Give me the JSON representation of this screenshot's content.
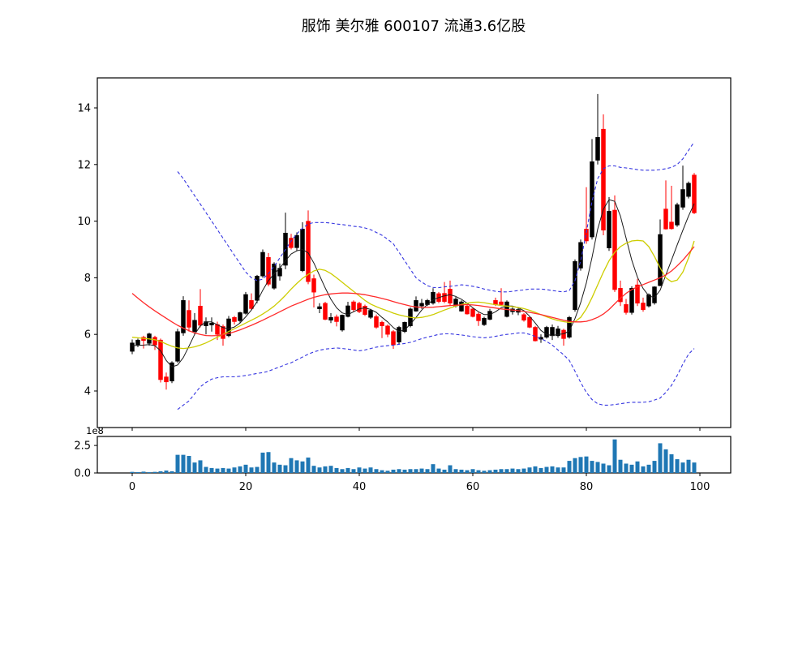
{
  "title": "服饰 美尔雅 600107 流通3.6亿股",
  "chart_data": {
    "type": "candlestick",
    "title": "服饰 美尔雅 600107 流通3.6亿股",
    "stock": {
      "sector": "服饰",
      "name": "美尔雅",
      "code": "600107",
      "float_shares_label": "流通3.6亿股"
    },
    "x_axis": {
      "tick_values": [
        0,
        20,
        40,
        60,
        80,
        100
      ],
      "tick_labels": [
        "0",
        "20",
        "40",
        "60",
        "80",
        "100"
      ],
      "xlim": [
        -6,
        106
      ]
    },
    "price_axis": {
      "tick_values": [
        4,
        6,
        8,
        10,
        12,
        14
      ],
      "tick_labels": [
        "4",
        "6",
        "8",
        "10",
        "12",
        "14"
      ],
      "ylim": [
        2.71,
        15.06
      ]
    },
    "volume_axis": {
      "tick_values": [
        0.0,
        2.5
      ],
      "tick_labels": [
        "0.0",
        "2.5"
      ],
      "offset_label": "1e8",
      "ylim": [
        0,
        3.32
      ]
    },
    "colors": {
      "up_candle": "#000000",
      "down_candle": "#ff0000",
      "ma_fast": "#1a1a1a",
      "ma_mid": "#cdcd00",
      "ma_slow": "#ff2a2a",
      "band": "#3535e0",
      "volume_bar": "#1f77b4",
      "spine": "#000000",
      "background": "#ffffff"
    },
    "candles_ohlc": [
      [
        5.4,
        5.82,
        5.3,
        5.7
      ],
      [
        5.63,
        5.85,
        5.55,
        5.8
      ],
      [
        5.9,
        5.95,
        5.5,
        5.78
      ],
      [
        5.68,
        6.06,
        5.6,
        6.02
      ],
      [
        5.9,
        5.95,
        5.45,
        5.62
      ],
      [
        5.8,
        5.85,
        4.3,
        4.4
      ],
      [
        4.5,
        4.65,
        4.05,
        4.32
      ],
      [
        4.35,
        5.05,
        4.28,
        5.0
      ],
      [
        5.05,
        6.2,
        5.0,
        6.1
      ],
      [
        6.05,
        7.35,
        5.95,
        7.2
      ],
      [
        6.85,
        7.2,
        6.1,
        6.25
      ],
      [
        6.1,
        6.75,
        6.0,
        6.5
      ],
      [
        7.0,
        7.6,
        6.25,
        6.32
      ],
      [
        6.3,
        6.6,
        6.0,
        6.45
      ],
      [
        6.33,
        6.6,
        6.1,
        6.4
      ],
      [
        6.35,
        6.45,
        5.8,
        6.0
      ],
      [
        6.28,
        6.35,
        5.6,
        5.85
      ],
      [
        5.95,
        6.65,
        5.9,
        6.55
      ],
      [
        6.6,
        6.65,
        6.35,
        6.45
      ],
      [
        6.48,
        6.8,
        6.4,
        6.77
      ],
      [
        6.74,
        7.5,
        6.7,
        7.41
      ],
      [
        7.2,
        7.45,
        6.85,
        6.91
      ],
      [
        7.2,
        8.1,
        7.1,
        8.06
      ],
      [
        8.06,
        9.0,
        8.0,
        8.9
      ],
      [
        8.72,
        8.87,
        7.7,
        7.77
      ],
      [
        7.63,
        8.55,
        7.58,
        8.49
      ],
      [
        8.06,
        8.5,
        7.9,
        8.34
      ],
      [
        8.44,
        10.3,
        8.3,
        9.58
      ],
      [
        9.4,
        9.55,
        9.0,
        9.06
      ],
      [
        9.06,
        9.6,
        8.95,
        9.5
      ],
      [
        8.25,
        9.96,
        8.2,
        9.72
      ],
      [
        10.0,
        10.38,
        7.77,
        7.86
      ],
      [
        7.97,
        8.11,
        6.95,
        7.49
      ],
      [
        6.9,
        7.1,
        6.75,
        6.98
      ],
      [
        7.1,
        7.15,
        6.5,
        6.53
      ],
      [
        6.5,
        6.75,
        6.4,
        6.6
      ],
      [
        6.62,
        6.7,
        6.28,
        6.45
      ],
      [
        6.15,
        6.7,
        6.1,
        6.68
      ],
      [
        6.63,
        7.15,
        6.6,
        7.01
      ],
      [
        7.15,
        7.2,
        6.8,
        6.87
      ],
      [
        7.1,
        7.15,
        6.75,
        6.8
      ],
      [
        7.0,
        7.05,
        6.65,
        6.7
      ],
      [
        6.6,
        6.9,
        6.55,
        6.85
      ],
      [
        6.63,
        6.7,
        6.2,
        6.25
      ],
      [
        6.43,
        6.48,
        5.87,
        6.3
      ],
      [
        6.3,
        6.35,
        5.9,
        6.0
      ],
      [
        6.1,
        6.15,
        5.49,
        5.63
      ],
      [
        5.73,
        6.3,
        5.65,
        6.25
      ],
      [
        6.1,
        6.45,
        6.05,
        6.43
      ],
      [
        6.3,
        6.95,
        6.25,
        6.9
      ],
      [
        6.82,
        7.34,
        6.8,
        7.2
      ],
      [
        7.0,
        7.25,
        6.9,
        7.1
      ],
      [
        7.05,
        7.25,
        7.0,
        7.2
      ],
      [
        7.1,
        7.63,
        7.05,
        7.49
      ],
      [
        7.44,
        7.5,
        7.1,
        7.16
      ],
      [
        7.45,
        7.85,
        7.1,
        7.16
      ],
      [
        7.6,
        7.9,
        7.0,
        7.1
      ],
      [
        7.0,
        7.32,
        6.95,
        7.25
      ],
      [
        6.82,
        7.2,
        6.8,
        7.15
      ],
      [
        7.0,
        7.05,
        6.7,
        6.72
      ],
      [
        6.9,
        6.95,
        6.6,
        6.63
      ],
      [
        6.72,
        6.78,
        6.3,
        6.48
      ],
      [
        6.34,
        6.62,
        6.3,
        6.57
      ],
      [
        6.53,
        6.9,
        6.5,
        6.82
      ],
      [
        7.2,
        7.3,
        7.0,
        7.05
      ],
      [
        7.15,
        7.63,
        7.0,
        7.05
      ],
      [
        6.63,
        7.2,
        6.6,
        7.15
      ],
      [
        6.8,
        6.95,
        6.7,
        6.9
      ],
      [
        6.78,
        6.95,
        6.68,
        6.88
      ],
      [
        6.7,
        6.75,
        6.45,
        6.5
      ],
      [
        6.6,
        6.65,
        6.22,
        6.25
      ],
      [
        6.25,
        6.3,
        5.75,
        5.77
      ],
      [
        5.83,
        6.0,
        5.7,
        5.9
      ],
      [
        5.9,
        6.3,
        5.85,
        6.25
      ],
      [
        5.95,
        6.35,
        5.8,
        6.25
      ],
      [
        5.95,
        6.3,
        5.88,
        6.2
      ],
      [
        6.15,
        6.2,
        5.6,
        5.85
      ],
      [
        5.9,
        6.65,
        5.85,
        6.6
      ],
      [
        6.87,
        8.65,
        6.8,
        8.58
      ],
      [
        8.34,
        9.35,
        8.25,
        9.25
      ],
      [
        9.72,
        11.2,
        9.2,
        9.3
      ],
      [
        9.44,
        12.9,
        9.35,
        12.1
      ],
      [
        12.15,
        14.49,
        12.0,
        12.96
      ],
      [
        13.25,
        13.77,
        9.5,
        9.68
      ],
      [
        9.05,
        10.85,
        8.95,
        10.35
      ],
      [
        10.39,
        10.91,
        7.5,
        7.58
      ],
      [
        7.63,
        7.9,
        7.0,
        7.15
      ],
      [
        7.06,
        7.25,
        6.7,
        6.77
      ],
      [
        6.77,
        7.7,
        6.7,
        7.63
      ],
      [
        7.75,
        7.96,
        7.0,
        7.1
      ],
      [
        7.11,
        7.3,
        6.8,
        6.87
      ],
      [
        7.0,
        7.45,
        6.95,
        7.4
      ],
      [
        7.11,
        7.7,
        7.05,
        7.68
      ],
      [
        7.72,
        10.06,
        7.7,
        9.53
      ],
      [
        10.43,
        11.44,
        9.7,
        9.72
      ],
      [
        9.97,
        11.25,
        9.7,
        9.73
      ],
      [
        9.86,
        10.65,
        9.8,
        10.58
      ],
      [
        10.49,
        11.96,
        10.4,
        11.12
      ],
      [
        10.87,
        11.4,
        10.8,
        11.34
      ],
      [
        11.63,
        11.7,
        10.25,
        10.29
      ]
    ],
    "volume_1e8": [
      0.1,
      0.08,
      0.12,
      0.07,
      0.1,
      0.15,
      0.22,
      0.15,
      1.65,
      1.65,
      1.55,
      0.95,
      1.15,
      0.55,
      0.45,
      0.4,
      0.45,
      0.4,
      0.5,
      0.6,
      0.75,
      0.5,
      0.55,
      1.85,
      1.9,
      0.95,
      0.75,
      0.7,
      1.35,
      1.15,
      1.05,
      1.4,
      0.65,
      0.5,
      0.6,
      0.65,
      0.45,
      0.35,
      0.45,
      0.35,
      0.5,
      0.4,
      0.5,
      0.35,
      0.25,
      0.2,
      0.3,
      0.35,
      0.3,
      0.35,
      0.35,
      0.4,
      0.35,
      0.8,
      0.4,
      0.3,
      0.7,
      0.35,
      0.3,
      0.25,
      0.35,
      0.25,
      0.2,
      0.25,
      0.3,
      0.35,
      0.35,
      0.4,
      0.35,
      0.4,
      0.5,
      0.6,
      0.45,
      0.55,
      0.6,
      0.5,
      0.5,
      1.1,
      1.35,
      1.45,
      1.5,
      1.1,
      1.0,
      0.85,
      0.7,
      3.05,
      1.2,
      0.85,
      0.75,
      1.05,
      0.6,
      0.75,
      1.1,
      2.7,
      2.15,
      1.7,
      1.25,
      0.95,
      1.2,
      0.95
    ],
    "lines": {
      "ma_fast": {
        "name": "short-ma-black",
        "values": [
          5.6,
          5.61,
          5.62,
          5.64,
          5.6,
          5.42,
          5.08,
          4.85,
          4.92,
          5.18,
          5.58,
          6.0,
          6.3,
          6.44,
          6.44,
          6.34,
          6.24,
          6.2,
          6.26,
          6.4,
          6.62,
          6.86,
          7.16,
          7.56,
          7.9,
          8.14,
          8.34,
          8.6,
          8.84,
          8.95,
          9.0,
          8.88,
          8.52,
          8.08,
          7.64,
          7.24,
          6.94,
          6.76,
          6.7,
          6.8,
          6.9,
          6.94,
          6.88,
          6.78,
          6.6,
          6.44,
          6.24,
          6.1,
          6.16,
          6.36,
          6.6,
          6.86,
          7.06,
          7.22,
          7.3,
          7.36,
          7.4,
          7.34,
          7.24,
          7.1,
          6.94,
          6.8,
          6.7,
          6.7,
          6.8,
          6.94,
          7.0,
          7.0,
          6.94,
          6.84,
          6.64,
          6.4,
          6.14,
          6.0,
          5.96,
          6.0,
          6.02,
          6.12,
          6.56,
          7.12,
          7.82,
          8.72,
          9.72,
          10.42,
          10.76,
          10.7,
          10.18,
          9.4,
          8.62,
          8.02,
          7.62,
          7.36,
          7.3,
          7.56,
          8.1,
          8.62,
          9.16,
          9.68,
          10.18,
          10.62
        ]
      },
      "ma_mid": {
        "name": "mid-ma-yellow",
        "values": [
          5.9,
          5.88,
          5.86,
          5.84,
          5.81,
          5.75,
          5.66,
          5.58,
          5.52,
          5.5,
          5.52,
          5.56,
          5.62,
          5.7,
          5.8,
          5.9,
          6.0,
          6.1,
          6.2,
          6.3,
          6.4,
          6.5,
          6.6,
          6.72,
          6.85,
          7.0,
          7.18,
          7.38,
          7.6,
          7.8,
          7.98,
          8.12,
          8.24,
          8.3,
          8.26,
          8.15,
          8.0,
          7.84,
          7.68,
          7.52,
          7.36,
          7.2,
          7.07,
          6.98,
          6.9,
          6.83,
          6.75,
          6.69,
          6.64,
          6.6,
          6.58,
          6.6,
          6.64,
          6.7,
          6.78,
          6.86,
          6.93,
          7.0,
          7.06,
          7.1,
          7.13,
          7.14,
          7.12,
          7.08,
          7.05,
          7.02,
          7.0,
          6.98,
          6.95,
          6.91,
          6.85,
          6.78,
          6.7,
          6.62,
          6.55,
          6.49,
          6.45,
          6.42,
          6.45,
          6.6,
          6.9,
          7.3,
          7.75,
          8.2,
          8.6,
          8.9,
          9.1,
          9.22,
          9.3,
          9.32,
          9.3,
          9.1,
          8.75,
          8.35,
          8.0,
          7.86,
          7.92,
          8.2,
          8.7,
          9.3
        ]
      },
      "ma_slow": {
        "name": "long-ma-red",
        "values": [
          7.45,
          7.28,
          7.12,
          6.97,
          6.83,
          6.7,
          6.57,
          6.44,
          6.32,
          6.22,
          6.13,
          6.05,
          6.0,
          5.96,
          5.95,
          5.96,
          5.99,
          6.03,
          6.09,
          6.16,
          6.24,
          6.32,
          6.41,
          6.5,
          6.6,
          6.7,
          6.8,
          6.9,
          7.0,
          7.08,
          7.16,
          7.24,
          7.31,
          7.36,
          7.4,
          7.43,
          7.45,
          7.46,
          7.46,
          7.45,
          7.43,
          7.4,
          7.36,
          7.32,
          7.27,
          7.22,
          7.16,
          7.1,
          7.05,
          7.0,
          6.97,
          6.95,
          6.95,
          6.96,
          6.98,
          7.0,
          7.02,
          7.03,
          7.04,
          7.05,
          7.04,
          7.02,
          6.99,
          6.96,
          6.93,
          6.9,
          6.88,
          6.86,
          6.84,
          6.81,
          6.78,
          6.74,
          6.7,
          6.65,
          6.6,
          6.55,
          6.5,
          6.46,
          6.44,
          6.44,
          6.46,
          6.52,
          6.6,
          6.72,
          6.88,
          7.08,
          7.28,
          7.45,
          7.58,
          7.68,
          7.76,
          7.84,
          7.92,
          8.0,
          8.1,
          8.24,
          8.42,
          8.62,
          8.86,
          9.1
        ]
      },
      "band_upper": {
        "name": "bollinger-upper-blue-dashed",
        "values": [
          null,
          null,
          null,
          null,
          null,
          null,
          null,
          null,
          11.75,
          11.5,
          11.2,
          10.9,
          10.6,
          10.3,
          10.0,
          9.7,
          9.4,
          9.1,
          8.8,
          8.5,
          8.2,
          8.0,
          7.9,
          7.95,
          8.15,
          8.4,
          8.7,
          9.0,
          9.3,
          9.55,
          9.75,
          9.9,
          9.95,
          9.95,
          9.95,
          9.93,
          9.9,
          9.88,
          9.85,
          9.82,
          9.8,
          9.76,
          9.7,
          9.6,
          9.5,
          9.36,
          9.2,
          8.9,
          8.6,
          8.3,
          8.0,
          7.85,
          7.72,
          7.66,
          7.65,
          7.68,
          7.7,
          7.72,
          7.75,
          7.73,
          7.7,
          7.66,
          7.6,
          7.56,
          7.52,
          7.5,
          7.5,
          7.52,
          7.55,
          7.57,
          7.6,
          7.6,
          7.6,
          7.58,
          7.55,
          7.52,
          7.5,
          7.55,
          7.9,
          8.6,
          9.6,
          10.7,
          11.5,
          11.85,
          11.95,
          11.95,
          11.9,
          11.88,
          11.85,
          11.82,
          11.8,
          11.8,
          11.8,
          11.82,
          11.85,
          11.9,
          12.0,
          12.2,
          12.5,
          12.8
        ]
      },
      "band_lower": {
        "name": "bollinger-lower-blue-dashed",
        "values": [
          null,
          null,
          null,
          null,
          null,
          null,
          null,
          null,
          3.35,
          3.5,
          3.65,
          3.9,
          4.15,
          4.3,
          4.42,
          4.47,
          4.5,
          4.5,
          4.5,
          4.52,
          4.55,
          4.58,
          4.62,
          4.65,
          4.7,
          4.78,
          4.85,
          4.93,
          5.0,
          5.1,
          5.2,
          5.3,
          5.38,
          5.44,
          5.48,
          5.5,
          5.52,
          5.5,
          5.48,
          5.45,
          5.42,
          5.45,
          5.5,
          5.55,
          5.58,
          5.6,
          5.62,
          5.65,
          5.68,
          5.72,
          5.78,
          5.85,
          5.9,
          5.95,
          6.0,
          6.02,
          6.02,
          6.0,
          5.98,
          5.95,
          5.92,
          5.9,
          5.88,
          5.9,
          5.93,
          5.97,
          6.0,
          6.02,
          6.05,
          6.05,
          6.0,
          5.93,
          5.85,
          5.75,
          5.62,
          5.45,
          5.28,
          5.08,
          4.7,
          4.3,
          3.95,
          3.7,
          3.55,
          3.5,
          3.5,
          3.52,
          3.55,
          3.58,
          3.6,
          3.6,
          3.6,
          3.62,
          3.68,
          3.75,
          3.95,
          4.2,
          4.55,
          4.95,
          5.3,
          5.5
        ]
      }
    }
  }
}
